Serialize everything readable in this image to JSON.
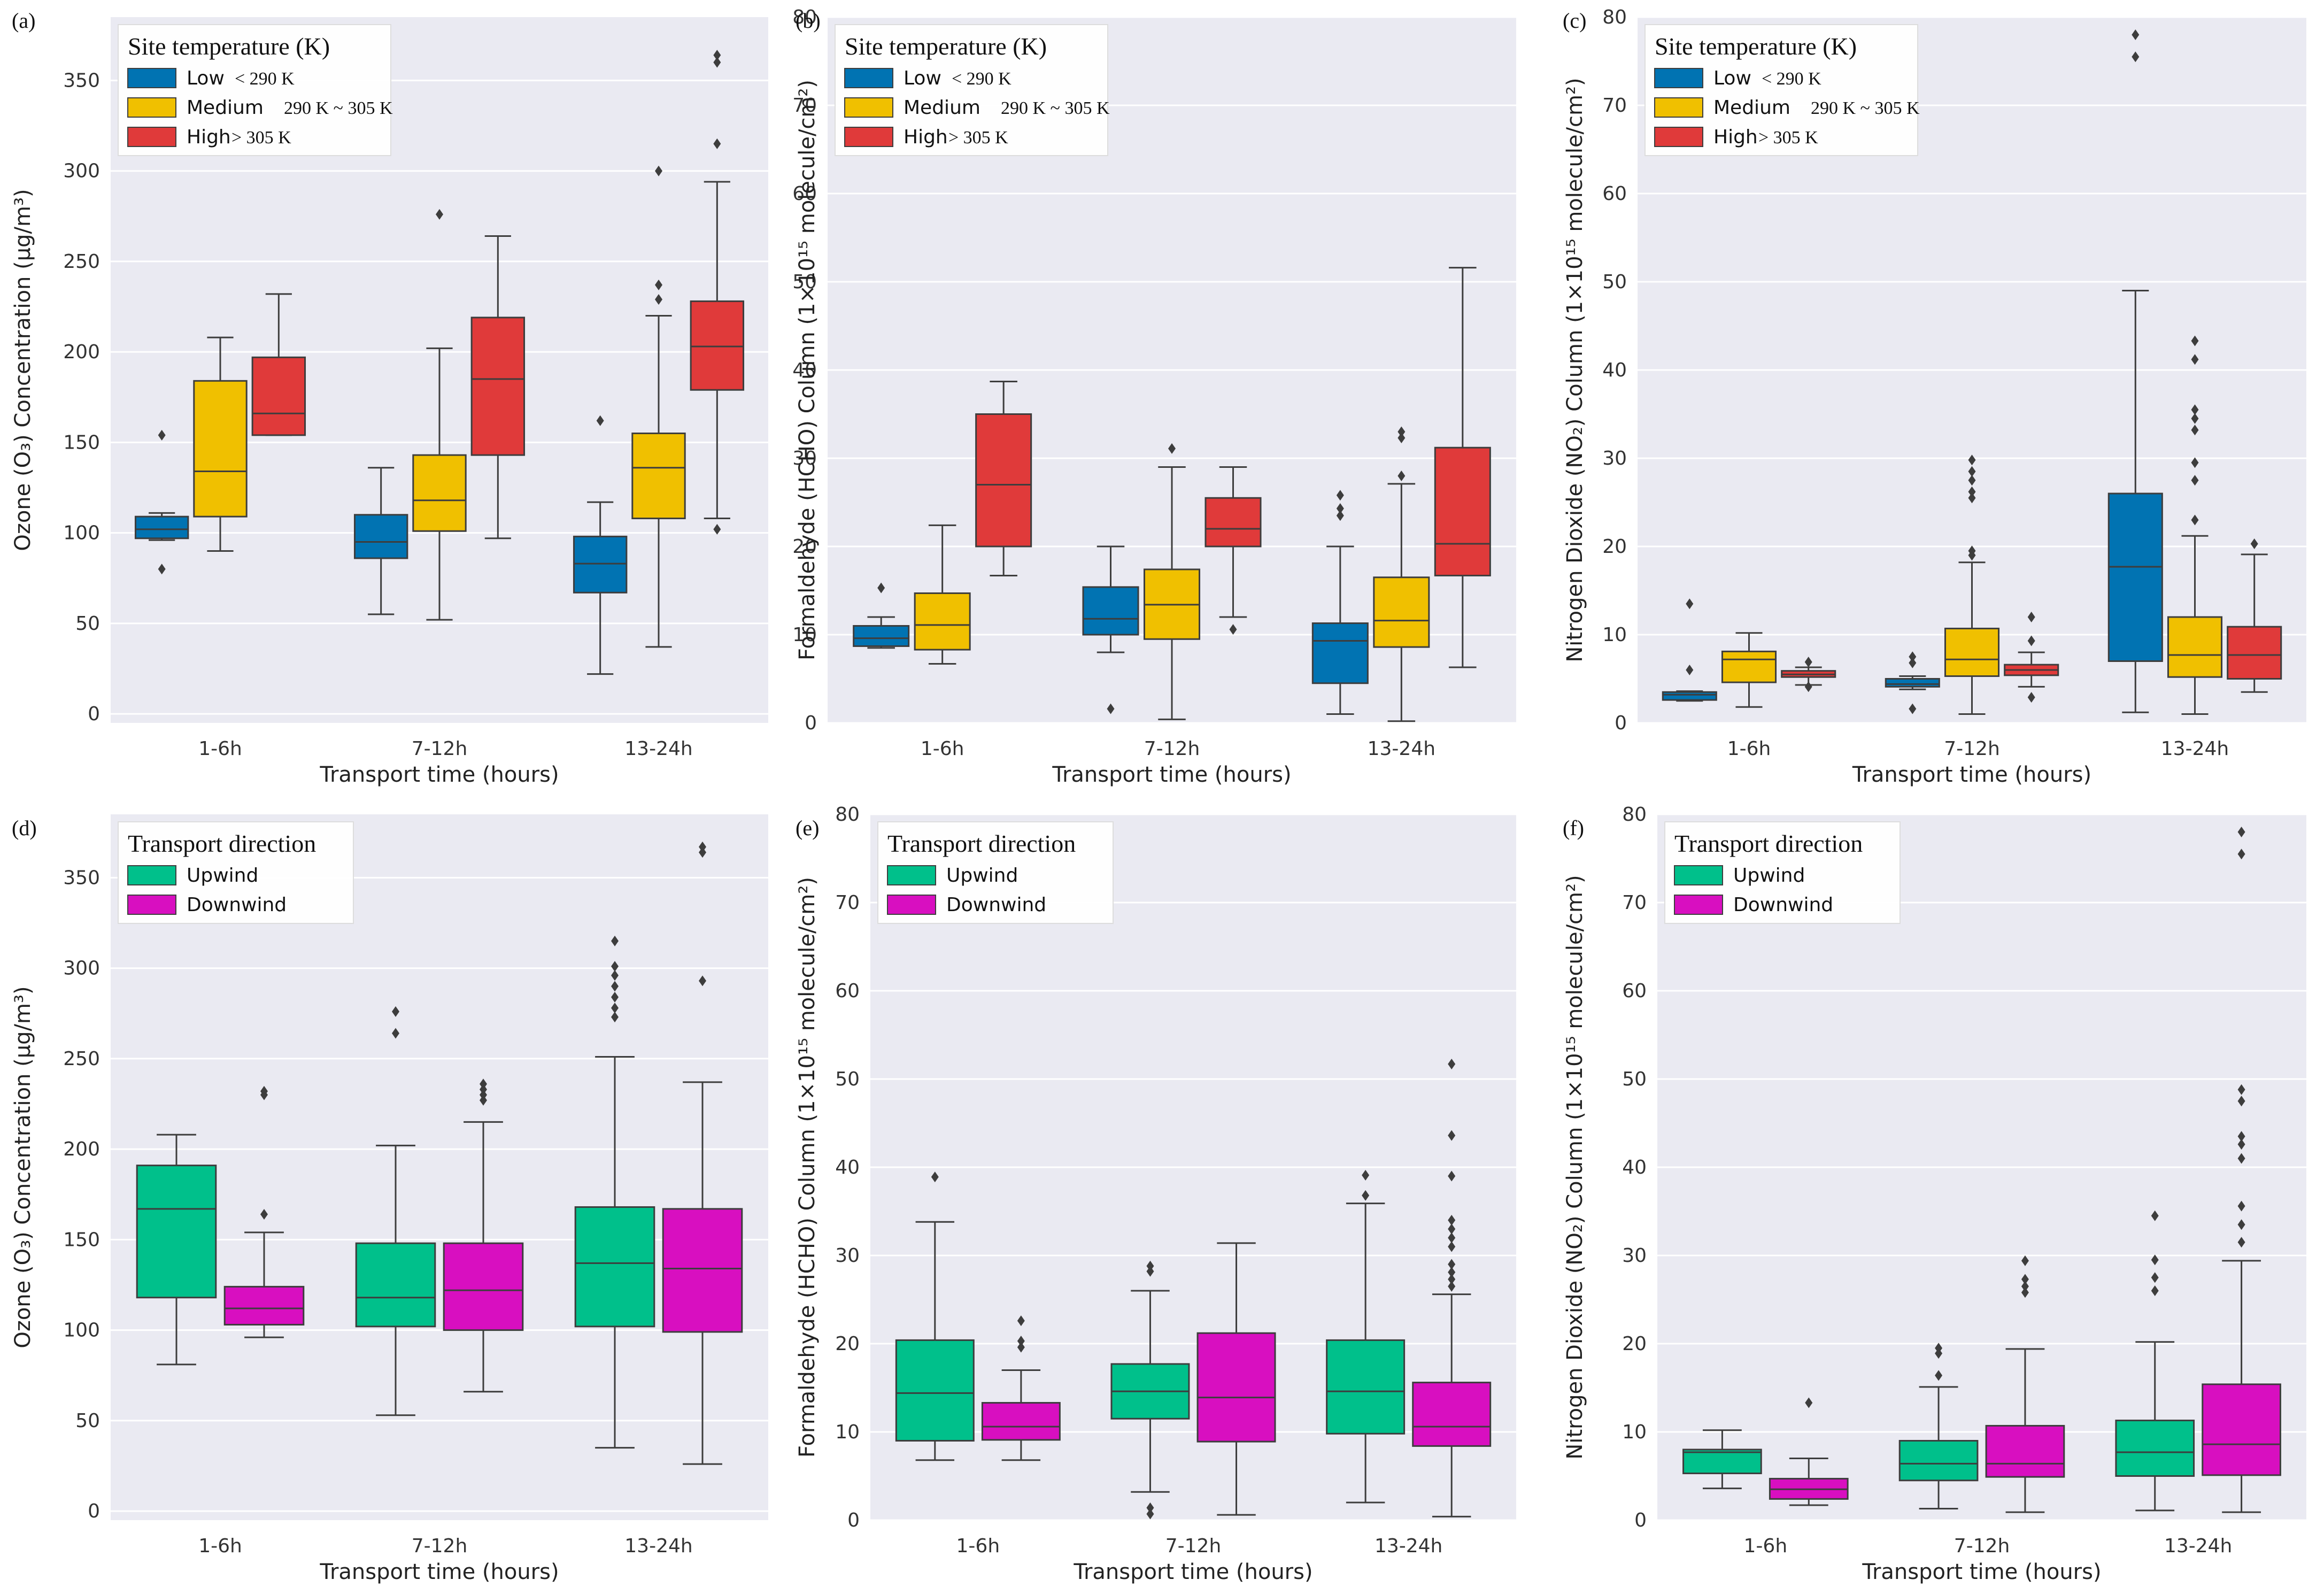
{
  "chart_data": [
    {
      "type": "box",
      "panel_label": "(a)",
      "xlabel": "Transport time (hours)",
      "ylabel": "Ozone (O₃) Concentration (μg/m³)",
      "ylim": [
        -5,
        385
      ],
      "yticks": [
        0,
        50,
        100,
        150,
        200,
        250,
        300,
        350
      ],
      "grid": true,
      "categories": [
        "1-6h",
        "7-12h",
        "13-24h"
      ],
      "legend": {
        "title": "Site temperature (K)",
        "location": "upper-left",
        "entries": [
          {
            "label": "Low",
            "sub": "< 290 K",
            "color": "#0173b2"
          },
          {
            "label": "Medium",
            "sub": "290 K ~ 305 K",
            "color": "#f0c000"
          },
          {
            "label": "High",
            "sub": "> 305 K",
            "color": "#e03a3a"
          }
        ]
      },
      "series": [
        {
          "name": "Low",
          "color": "#0173b2",
          "boxes": [
            {
              "whislo": 96,
              "q1": 97,
              "med": 102,
              "q3": 109,
              "whishi": 111,
              "fliers": [
                80,
                154
              ]
            },
            {
              "whislo": 55,
              "q1": 86,
              "med": 95,
              "q3": 110,
              "whishi": 136,
              "fliers": []
            },
            {
              "whislo": 22,
              "q1": 67,
              "med": 83,
              "q3": 98,
              "whishi": 117,
              "fliers": [
                162
              ]
            }
          ]
        },
        {
          "name": "Medium",
          "color": "#f0c000",
          "boxes": [
            {
              "whislo": 90,
              "q1": 109,
              "med": 134,
              "q3": 184,
              "whishi": 208,
              "fliers": []
            },
            {
              "whislo": 52,
              "q1": 101,
              "med": 118,
              "q3": 143,
              "whishi": 202,
              "fliers": [
                276
              ]
            },
            {
              "whislo": 37,
              "q1": 108,
              "med": 136,
              "q3": 155,
              "whishi": 220,
              "fliers": [
                229,
                237,
                300
              ]
            }
          ]
        },
        {
          "name": "High",
          "color": "#e03a3a",
          "boxes": [
            {
              "whislo": 154,
              "q1": 154,
              "med": 166,
              "q3": 197,
              "whishi": 232,
              "fliers": []
            },
            {
              "whislo": 97,
              "q1": 143,
              "med": 185,
              "q3": 219,
              "whishi": 264,
              "fliers": []
            },
            {
              "whislo": 108,
              "q1": 179,
              "med": 203,
              "q3": 228,
              "whishi": 294,
              "fliers": [
                102,
                315,
                360,
                364
              ]
            }
          ]
        }
      ]
    },
    {
      "type": "box",
      "panel_label": "(b)",
      "xlabel": "Transport time (hours)",
      "ylabel": "Formaldehyde (HCHO) Column (1×10¹⁵ molecule/cm²)",
      "ylim": [
        0,
        80
      ],
      "yticks": [
        0,
        10,
        20,
        30,
        40,
        50,
        60,
        70,
        80
      ],
      "grid": true,
      "categories": [
        "1-6h",
        "7-12h",
        "13-24h"
      ],
      "legend": {
        "title": "Site temperature (K)",
        "location": "upper-left",
        "entries": [
          {
            "label": "Low",
            "sub": "< 290 K",
            "color": "#0173b2"
          },
          {
            "label": "Medium",
            "sub": "290 K ~ 305 K",
            "color": "#f0c000"
          },
          {
            "label": "High",
            "sub": "> 305 K",
            "color": "#e03a3a"
          }
        ]
      },
      "series": [
        {
          "name": "Low",
          "color": "#0173b2",
          "boxes": [
            {
              "whislo": 8.5,
              "q1": 8.7,
              "med": 9.6,
              "q3": 11,
              "whishi": 12,
              "fliers": [
                15.3
              ]
            },
            {
              "whislo": 8,
              "q1": 10,
              "med": 11.8,
              "q3": 15.4,
              "whishi": 20,
              "fliers": [
                1.6
              ]
            },
            {
              "whislo": 1,
              "q1": 4.5,
              "med": 9.3,
              "q3": 11.3,
              "whishi": 20,
              "fliers": [
                23.5,
                24.3,
                25.8
              ]
            }
          ]
        },
        {
          "name": "Medium",
          "color": "#f0c000",
          "boxes": [
            {
              "whislo": 6.7,
              "q1": 8.3,
              "med": 11.1,
              "q3": 14.7,
              "whishi": 22.4,
              "fliers": []
            },
            {
              "whislo": 0.4,
              "q1": 9.5,
              "med": 13.4,
              "q3": 17.4,
              "whishi": 29,
              "fliers": [
                31.1
              ]
            },
            {
              "whislo": 0.2,
              "q1": 8.6,
              "med": 11.6,
              "q3": 16.5,
              "whishi": 27.1,
              "fliers": [
                28,
                32.3,
                33
              ]
            }
          ]
        },
        {
          "name": "High",
          "color": "#e03a3a",
          "boxes": [
            {
              "whislo": 16.7,
              "q1": 20,
              "med": 27,
              "q3": 35,
              "whishi": 38.7,
              "fliers": []
            },
            {
              "whislo": 12,
              "q1": 20,
              "med": 22,
              "q3": 25.5,
              "whishi": 29,
              "fliers": [
                10.6
              ]
            },
            {
              "whislo": 6.3,
              "q1": 16.7,
              "med": 20.3,
              "q3": 31.2,
              "whishi": 51.6,
              "fliers": []
            }
          ]
        }
      ]
    },
    {
      "type": "box",
      "panel_label": "(c)",
      "xlabel": "Transport time (hours)",
      "ylabel": "Nitrogen Dioxide (NO₂) Column (1×10¹⁵ molecule/cm²)",
      "ylim": [
        0,
        80
      ],
      "yticks": [
        0,
        10,
        20,
        30,
        40,
        50,
        60,
        70,
        80
      ],
      "grid": true,
      "categories": [
        "1-6h",
        "7-12h",
        "13-24h"
      ],
      "legend": {
        "title": "Site temperature (K)",
        "location": "upper-left",
        "entries": [
          {
            "label": "Low",
            "sub": "< 290 K",
            "color": "#0173b2"
          },
          {
            "label": "Medium",
            "sub": "290 K ~ 305 K",
            "color": "#f0c000"
          },
          {
            "label": "High",
            "sub": "> 305 K",
            "color": "#e03a3a"
          }
        ]
      },
      "series": [
        {
          "name": "Low",
          "color": "#0173b2",
          "boxes": [
            {
              "whislo": 2.5,
              "q1": 2.6,
              "med": 3.2,
              "q3": 3.5,
              "whishi": 3.6,
              "fliers": [
                6,
                13.5
              ]
            },
            {
              "whislo": 3.8,
              "q1": 4.1,
              "med": 4.4,
              "q3": 5,
              "whishi": 5.3,
              "fliers": [
                1.6,
                6.8,
                7.5
              ]
            },
            {
              "whislo": 1.2,
              "q1": 7,
              "med": 17.7,
              "q3": 26,
              "whishi": 49,
              "fliers": [
                75.5,
                78
              ]
            }
          ]
        },
        {
          "name": "Medium",
          "color": "#f0c000",
          "boxes": [
            {
              "whislo": 1.8,
              "q1": 4.6,
              "med": 7.2,
              "q3": 8.1,
              "whishi": 10.2,
              "fliers": []
            },
            {
              "whislo": 1,
              "q1": 5.3,
              "med": 7.2,
              "q3": 10.7,
              "whishi": 18.2,
              "fliers": [
                19,
                19.5,
                25.5,
                26.2,
                27.5,
                28.5,
                29.8
              ]
            },
            {
              "whislo": 1,
              "q1": 5.2,
              "med": 7.7,
              "q3": 12,
              "whishi": 21.2,
              "fliers": [
                23,
                27.5,
                29.5,
                33.2,
                34.5,
                35.5,
                41.2,
                43.3
              ]
            }
          ]
        },
        {
          "name": "High",
          "color": "#e03a3a",
          "boxes": [
            {
              "whislo": 4.3,
              "q1": 5.2,
              "med": 5.5,
              "q3": 5.9,
              "whishi": 6.3,
              "fliers": [
                4.1,
                6.9
              ]
            },
            {
              "whislo": 4.1,
              "q1": 5.4,
              "med": 6,
              "q3": 6.6,
              "whishi": 8,
              "fliers": [
                2.9,
                9.3,
                12
              ]
            },
            {
              "whislo": 3.5,
              "q1": 5,
              "med": 7.7,
              "q3": 10.9,
              "whishi": 19.1,
              "fliers": [
                20.3
              ]
            }
          ]
        }
      ]
    },
    {
      "type": "box",
      "panel_label": "(d)",
      "xlabel": "Transport time (hours)",
      "ylabel": "Ozone (O₃) Concentration (μg/m³)",
      "ylim": [
        -5,
        385
      ],
      "yticks": [
        0,
        50,
        100,
        150,
        200,
        250,
        300,
        350
      ],
      "grid": true,
      "categories": [
        "1-6h",
        "7-12h",
        "13-24h"
      ],
      "legend": {
        "title": "Transport direction",
        "location": "upper-left",
        "entries": [
          {
            "label": "Upwind",
            "color": "#00c08b"
          },
          {
            "label": "Downwind",
            "color": "#d80fc0"
          }
        ]
      },
      "series": [
        {
          "name": "Upwind",
          "color": "#00c08b",
          "boxes": [
            {
              "whislo": 81,
              "q1": 118,
              "med": 167,
              "q3": 191,
              "whishi": 208,
              "fliers": []
            },
            {
              "whislo": 53,
              "q1": 102,
              "med": 118,
              "q3": 148,
              "whishi": 202,
              "fliers": [
                264,
                276
              ]
            },
            {
              "whislo": 35,
              "q1": 102,
              "med": 137,
              "q3": 168,
              "whishi": 251,
              "fliers": [
                273,
                278,
                284,
                290,
                296,
                301,
                315
              ]
            }
          ]
        },
        {
          "name": "Downwind",
          "color": "#d80fc0",
          "boxes": [
            {
              "whislo": 96,
              "q1": 103,
              "med": 112,
              "q3": 124,
              "whishi": 154,
              "fliers": [
                164,
                230,
                232
              ]
            },
            {
              "whislo": 66,
              "q1": 100,
              "med": 122,
              "q3": 148,
              "whishi": 215,
              "fliers": [
                227,
                230,
                233,
                236
              ]
            },
            {
              "whislo": 26,
              "q1": 99,
              "med": 134,
              "q3": 167,
              "whishi": 237,
              "fliers": [
                293,
                364,
                367
              ]
            }
          ]
        }
      ]
    },
    {
      "type": "box",
      "panel_label": "(e)",
      "xlabel": "Transport time (hours)",
      "ylabel": "Formaldehyde (HCHO) Column (1×10¹⁵ molecule/cm²)",
      "ylim": [
        0,
        80
      ],
      "yticks": [
        0,
        10,
        20,
        30,
        40,
        50,
        60,
        70,
        80
      ],
      "grid": true,
      "categories": [
        "1-6h",
        "7-12h",
        "13-24h"
      ],
      "legend": {
        "title": "Transport direction",
        "location": "upper-left",
        "entries": [
          {
            "label": "Upwind",
            "color": "#00c08b"
          },
          {
            "label": "Downwind",
            "color": "#d80fc0"
          }
        ]
      },
      "series": [
        {
          "name": "Upwind",
          "color": "#00c08b",
          "boxes": [
            {
              "whislo": 6.8,
              "q1": 9,
              "med": 14.4,
              "q3": 20.4,
              "whishi": 33.8,
              "fliers": [
                38.9
              ]
            },
            {
              "whislo": 3.2,
              "q1": 11.5,
              "med": 14.6,
              "q3": 17.7,
              "whishi": 26,
              "fliers": [
                0.7,
                1.4,
                28.2,
                28.8
              ]
            },
            {
              "whislo": 2,
              "q1": 9.8,
              "med": 14.6,
              "q3": 20.4,
              "whishi": 35.9,
              "fliers": [
                36.8,
                39.1
              ]
            }
          ]
        },
        {
          "name": "Downwind",
          "color": "#d80fc0",
          "boxes": [
            {
              "whislo": 6.8,
              "q1": 9.1,
              "med": 10.6,
              "q3": 13.3,
              "whishi": 17,
              "fliers": [
                19.6,
                20.3,
                22.6
              ]
            },
            {
              "whislo": 0.6,
              "q1": 8.9,
              "med": 13.9,
              "q3": 21.2,
              "whishi": 31.4,
              "fliers": []
            },
            {
              "whislo": 0.4,
              "q1": 8.4,
              "med": 10.6,
              "q3": 15.6,
              "whishi": 25.6,
              "fliers": [
                26.5,
                27.3,
                28.1,
                29,
                31,
                32,
                33,
                34,
                39,
                43.6,
                51.7
              ]
            }
          ]
        }
      ]
    },
    {
      "type": "box",
      "panel_label": "(f)",
      "xlabel": "Transport time (hours)",
      "ylabel": "Nitrogen Dioxide (NO₂) Column (1×10¹⁵ molecule/cm²)",
      "ylim": [
        0,
        80
      ],
      "yticks": [
        0,
        10,
        20,
        30,
        40,
        50,
        60,
        70,
        80
      ],
      "grid": true,
      "categories": [
        "1-6h",
        "7-12h",
        "13-24h"
      ],
      "legend": {
        "title": "Transport direction",
        "location": "upper-left",
        "entries": [
          {
            "label": "Upwind",
            "color": "#00c08b"
          },
          {
            "label": "Downwind",
            "color": "#d80fc0"
          }
        ]
      },
      "series": [
        {
          "name": "Upwind",
          "color": "#00c08b",
          "boxes": [
            {
              "whislo": 3.6,
              "q1": 5.3,
              "med": 7.7,
              "q3": 8,
              "whishi": 10.2,
              "fliers": []
            },
            {
              "whislo": 1.3,
              "q1": 4.5,
              "med": 6.4,
              "q3": 9,
              "whishi": 15.1,
              "fliers": [
                16.4,
                18.9,
                19.5
              ]
            },
            {
              "whislo": 1.1,
              "q1": 5,
              "med": 7.7,
              "q3": 11.3,
              "whishi": 20.2,
              "fliers": [
                26,
                27.5,
                29.5,
                34.5
              ]
            }
          ]
        },
        {
          "name": "Downwind",
          "color": "#d80fc0",
          "boxes": [
            {
              "whislo": 1.7,
              "q1": 2.4,
              "med": 3.5,
              "q3": 4.7,
              "whishi": 7,
              "fliers": [
                13.3
              ]
            },
            {
              "whislo": 0.9,
              "q1": 4.9,
              "med": 6.4,
              "q3": 10.7,
              "whishi": 19.4,
              "fliers": [
                25.8,
                26.5,
                27.3,
                29.4
              ]
            },
            {
              "whislo": 0.9,
              "q1": 5.1,
              "med": 8.6,
              "q3": 15.4,
              "whishi": 29.4,
              "fliers": [
                31.5,
                33.5,
                35.6,
                41,
                42.6,
                43.5,
                47.5,
                48.8,
                75.5,
                78
              ]
            }
          ]
        }
      ]
    }
  ]
}
